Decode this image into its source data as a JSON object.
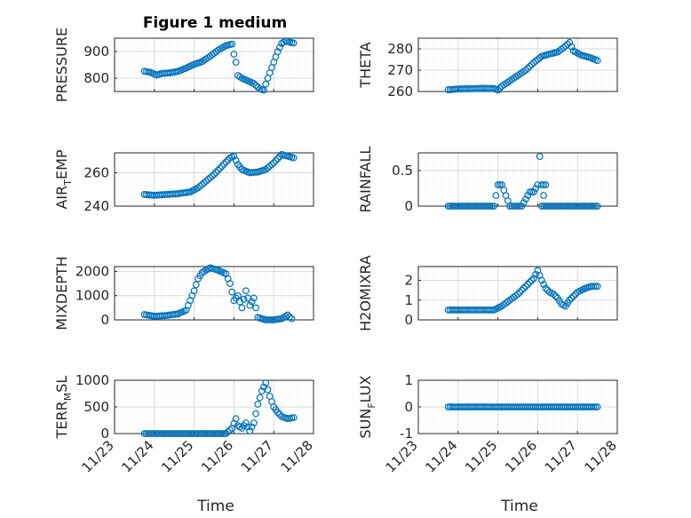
{
  "figure": {
    "title": "Figure 1 medium"
  },
  "colors": {
    "marker": "#0072bd",
    "axis": "#262626",
    "grid": "#d9d9d9"
  },
  "chart_data": [
    {
      "type": "scatter",
      "name": "pressure",
      "ylabel": "PRESSURE",
      "ylim": [
        750,
        950
      ],
      "yticks": [
        800,
        900
      ],
      "xlim": [
        1,
        6
      ],
      "xticks": [
        "11/23",
        "11/24",
        "11/25",
        "11/26",
        "11/27",
        "11/28"
      ],
      "grid": true,
      "points": [
        [
          1.75,
          826
        ],
        [
          1.9,
          822
        ],
        [
          2.05,
          812
        ],
        [
          2.2,
          818
        ],
        [
          2.4,
          820
        ],
        [
          2.6,
          826
        ],
        [
          2.8,
          838
        ],
        [
          3.0,
          852
        ],
        [
          3.2,
          862
        ],
        [
          3.4,
          882
        ],
        [
          3.6,
          905
        ],
        [
          3.8,
          922
        ],
        [
          3.95,
          928
        ],
        [
          4.0,
          890
        ],
        [
          4.05,
          860
        ],
        [
          4.1,
          810
        ],
        [
          4.2,
          800
        ],
        [
          4.35,
          790
        ],
        [
          4.5,
          780
        ],
        [
          4.65,
          760
        ],
        [
          4.75,
          755
        ],
        [
          4.85,
          800
        ],
        [
          5.0,
          860
        ],
        [
          5.1,
          900
        ],
        [
          5.2,
          930
        ],
        [
          5.3,
          940
        ],
        [
          5.4,
          935
        ],
        [
          5.5,
          932
        ]
      ]
    },
    {
      "type": "scatter",
      "name": "theta",
      "ylabel": "THETA",
      "ylim": [
        260,
        285
      ],
      "yticks": [
        260,
        270,
        280
      ],
      "xlim": [
        1,
        6
      ],
      "xticks": [
        "11/23",
        "11/24",
        "11/25",
        "11/26",
        "11/27",
        "11/28"
      ],
      "grid": true,
      "points": [
        [
          1.75,
          260.8
        ],
        [
          2.0,
          261.2
        ],
        [
          2.3,
          261.3
        ],
        [
          2.6,
          261.5
        ],
        [
          2.9,
          261.4
        ],
        [
          3.0,
          260.7
        ],
        [
          3.1,
          262.5
        ],
        [
          3.3,
          265.0
        ],
        [
          3.5,
          267.5
        ],
        [
          3.7,
          270.0
        ],
        [
          3.9,
          273.5
        ],
        [
          4.1,
          276.5
        ],
        [
          4.3,
          277.6
        ],
        [
          4.5,
          278.5
        ],
        [
          4.65,
          280.5
        ],
        [
          4.8,
          283.0
        ],
        [
          4.9,
          279.0
        ],
        [
          5.1,
          277.0
        ],
        [
          5.3,
          276.0
        ],
        [
          5.5,
          274.5
        ]
      ]
    },
    {
      "type": "scatter",
      "name": "air_temp",
      "ylabel": "AIR_TEMP",
      "ylim": [
        240,
        272
      ],
      "yticks": [
        240,
        260
      ],
      "xlim": [
        1,
        6
      ],
      "xticks": [
        "11/23",
        "11/24",
        "11/25",
        "11/26",
        "11/27",
        "11/28"
      ],
      "grid": true,
      "points": [
        [
          1.75,
          247.0
        ],
        [
          2.0,
          246.5
        ],
        [
          2.3,
          247.0
        ],
        [
          2.6,
          247.5
        ],
        [
          2.9,
          248.5
        ],
        [
          3.1,
          251.0
        ],
        [
          3.3,
          255.0
        ],
        [
          3.5,
          259.0
        ],
        [
          3.7,
          264.0
        ],
        [
          3.9,
          269.0
        ],
        [
          4.0,
          270.0
        ],
        [
          4.1,
          265.0
        ],
        [
          4.2,
          262.0
        ],
        [
          4.4,
          260.0
        ],
        [
          4.6,
          260.5
        ],
        [
          4.8,
          262.0
        ],
        [
          5.0,
          266.0
        ],
        [
          5.2,
          271.0
        ],
        [
          5.35,
          270.0
        ],
        [
          5.5,
          269.0
        ]
      ]
    },
    {
      "type": "scatter",
      "name": "rainfall",
      "ylabel": "RAINFALL",
      "ylim": [
        0,
        0.75
      ],
      "yticks": [
        0,
        0.5
      ],
      "xlim": [
        1,
        6
      ],
      "xticks": [
        "11/23",
        "11/24",
        "11/25",
        "11/26",
        "11/27",
        "11/28"
      ],
      "grid": true,
      "points": [
        [
          1.75,
          0
        ],
        [
          2.0,
          0
        ],
        [
          2.3,
          0
        ],
        [
          2.6,
          0
        ],
        [
          2.9,
          0
        ],
        [
          3.0,
          0.3
        ],
        [
          3.1,
          0.3
        ],
        [
          3.3,
          0
        ],
        [
          3.6,
          0
        ],
        [
          3.8,
          0.2
        ],
        [
          3.9,
          0.2
        ],
        [
          4.0,
          0.3
        ],
        [
          4.05,
          0.7
        ],
        [
          4.1,
          0.3
        ],
        [
          4.2,
          0.3
        ],
        [
          4.1,
          0
        ],
        [
          4.3,
          0
        ],
        [
          4.6,
          0
        ],
        [
          4.9,
          0
        ],
        [
          5.2,
          0
        ],
        [
          5.5,
          0
        ]
      ]
    },
    {
      "type": "scatter",
      "name": "mixdepth",
      "ylabel": "MIXDEPTH",
      "ylim": [
        0,
        2200
      ],
      "yticks": [
        0,
        1000,
        2000
      ],
      "xlim": [
        1,
        6
      ],
      "xticks": [
        "11/23",
        "11/24",
        "11/25",
        "11/26",
        "11/27",
        "11/28"
      ],
      "grid": true,
      "points": [
        [
          1.75,
          220
        ],
        [
          2.0,
          150
        ],
        [
          2.3,
          180
        ],
        [
          2.6,
          250
        ],
        [
          2.8,
          400
        ],
        [
          3.0,
          1200
        ],
        [
          3.1,
          1700
        ],
        [
          3.2,
          1950
        ],
        [
          3.4,
          2150
        ],
        [
          3.6,
          2050
        ],
        [
          3.8,
          1900
        ],
        [
          3.9,
          1500
        ],
        [
          4.0,
          800
        ],
        [
          4.1,
          1000
        ],
        [
          4.2,
          500
        ],
        [
          4.3,
          1200
        ],
        [
          4.4,
          600
        ],
        [
          4.5,
          900
        ],
        [
          4.6,
          100
        ],
        [
          4.8,
          0
        ],
        [
          5.0,
          0
        ],
        [
          5.2,
          50
        ],
        [
          5.35,
          200
        ],
        [
          5.45,
          50
        ]
      ]
    },
    {
      "type": "scatter",
      "name": "h2omixra",
      "ylabel": "H2OMIXRA",
      "ylim": [
        0,
        2.7
      ],
      "yticks": [
        0,
        1,
        2
      ],
      "xlim": [
        1,
        6
      ],
      "xticks": [
        "11/23",
        "11/24",
        "11/25",
        "11/26",
        "11/27",
        "11/28"
      ],
      "grid": true,
      "points": [
        [
          1.75,
          0.5
        ],
        [
          2.0,
          0.5
        ],
        [
          2.3,
          0.5
        ],
        [
          2.6,
          0.5
        ],
        [
          2.9,
          0.5
        ],
        [
          3.1,
          0.7
        ],
        [
          3.3,
          1.0
        ],
        [
          3.5,
          1.3
        ],
        [
          3.7,
          1.7
        ],
        [
          3.9,
          2.1
        ],
        [
          4.0,
          2.5
        ],
        [
          4.1,
          2.0
        ],
        [
          4.2,
          1.6
        ],
        [
          4.3,
          1.4
        ],
        [
          4.4,
          1.3
        ],
        [
          4.5,
          1.1
        ],
        [
          4.6,
          0.8
        ],
        [
          4.7,
          0.7
        ],
        [
          4.8,
          1.0
        ],
        [
          5.0,
          1.4
        ],
        [
          5.2,
          1.6
        ],
        [
          5.35,
          1.7
        ],
        [
          5.5,
          1.7
        ]
      ]
    },
    {
      "type": "scatter",
      "name": "terr_msl",
      "ylabel": "TERR_MSL",
      "ylim": [
        0,
        1000
      ],
      "yticks": [
        0,
        500,
        1000
      ],
      "xlim": [
        1,
        6
      ],
      "xticks": [
        "11/23",
        "11/24",
        "11/25",
        "11/26",
        "11/27",
        "11/28"
      ],
      "grid": true,
      "points": [
        [
          1.75,
          0
        ],
        [
          2.0,
          0
        ],
        [
          2.3,
          0
        ],
        [
          2.6,
          0
        ],
        [
          2.9,
          0
        ],
        [
          3.2,
          0
        ],
        [
          3.5,
          0
        ],
        [
          3.8,
          0
        ],
        [
          3.95,
          100
        ],
        [
          4.05,
          280
        ],
        [
          4.1,
          150
        ],
        [
          4.2,
          100
        ],
        [
          4.3,
          200
        ],
        [
          4.4,
          50
        ],
        [
          4.5,
          200
        ],
        [
          4.6,
          550
        ],
        [
          4.7,
          800
        ],
        [
          4.8,
          950
        ],
        [
          4.9,
          700
        ],
        [
          5.0,
          500
        ],
        [
          5.1,
          400
        ],
        [
          5.2,
          320
        ],
        [
          5.35,
          280
        ],
        [
          5.5,
          300
        ]
      ]
    },
    {
      "type": "scatter",
      "name": "sun_flux",
      "ylabel": "SUN_FLUX",
      "ylim": [
        -1,
        1
      ],
      "yticks": [
        -1,
        0,
        1
      ],
      "xlim": [
        1,
        6
      ],
      "xticks": [
        "11/23",
        "11/24",
        "11/25",
        "11/26",
        "11/27",
        "11/28"
      ],
      "grid": true,
      "points": [
        [
          1.75,
          0
        ],
        [
          2.0,
          0
        ],
        [
          2.3,
          0
        ],
        [
          2.6,
          0
        ],
        [
          2.9,
          0
        ],
        [
          3.2,
          0
        ],
        [
          3.5,
          0
        ],
        [
          3.8,
          0
        ],
        [
          4.1,
          0
        ],
        [
          4.4,
          0
        ],
        [
          4.7,
          0
        ],
        [
          5.0,
          0
        ],
        [
          5.3,
          0
        ],
        [
          5.5,
          0
        ]
      ]
    }
  ],
  "ylabel_parts": {
    "air_temp": {
      "main": "AIR",
      "sub": "T",
      "rest": "EMP"
    },
    "terr_msl": {
      "main": "TERR",
      "sub": "M",
      "rest": "SL"
    },
    "sun_flux": {
      "main": "SUN",
      "sub": "F",
      "rest": "LUX"
    }
  },
  "xlabel": "Time"
}
